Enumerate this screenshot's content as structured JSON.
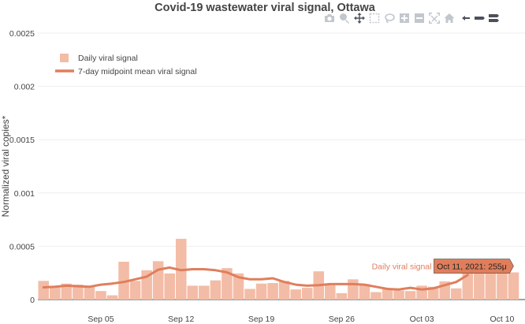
{
  "chart_data": {
    "type": "bar",
    "title": "Covid-19 wastewater viral signal, Ottawa",
    "ylabel": "Normalized viral copies*",
    "xlabel": "",
    "ylim": [
      0,
      0.0025
    ],
    "yticks": [
      0,
      0.0005,
      0.001,
      0.0015,
      0.002,
      0.0025
    ],
    "ytick_labels": [
      "0",
      "0.0005",
      "0.001",
      "0.0015",
      "0.002",
      "0.0025"
    ],
    "xrange": [
      "2021-08-31",
      "2021-10-12"
    ],
    "xticks": [
      "2021-09-05",
      "2021-09-12",
      "2021-09-19",
      "2021-09-26",
      "2021-10-03",
      "2021-10-10"
    ],
    "xtick_labels": [
      "Sep 05",
      "Sep 12",
      "Sep 19",
      "Sep 26",
      "Oct 03",
      "Oct 10"
    ],
    "grid": true,
    "legend_position": "top-left",
    "colors": {
      "bar": "#f3bca6",
      "line": "#e07e5c",
      "hover_box": "#e07e5c",
      "title": "#444444",
      "axis_text": "#444444",
      "grid": "#eeeeee"
    },
    "series": [
      {
        "name": "Daily viral signal",
        "kind": "bar",
        "x": [
          "2021-08-31",
          "2021-09-01",
          "2021-09-02",
          "2021-09-03",
          "2021-09-04",
          "2021-09-05",
          "2021-09-06",
          "2021-09-07",
          "2021-09-08",
          "2021-09-09",
          "2021-09-10",
          "2021-09-11",
          "2021-09-12",
          "2021-09-13",
          "2021-09-14",
          "2021-09-15",
          "2021-09-16",
          "2021-09-17",
          "2021-09-18",
          "2021-09-19",
          "2021-09-20",
          "2021-09-21",
          "2021-09-22",
          "2021-09-23",
          "2021-09-24",
          "2021-09-25",
          "2021-09-26",
          "2021-09-27",
          "2021-09-28",
          "2021-09-29",
          "2021-09-30",
          "2021-10-01",
          "2021-10-02",
          "2021-10-03",
          "2021-10-04",
          "2021-10-05",
          "2021-10-06",
          "2021-10-07",
          "2021-10-08",
          "2021-10-09",
          "2021-10-10",
          "2021-10-11"
        ],
        "values": [
          0.000175,
          0.000115,
          0.00015,
          0.00014,
          0.00012,
          8e-05,
          4e-05,
          0.000355,
          0.000175,
          0.000275,
          0.00036,
          0.000245,
          0.00057,
          0.00013,
          0.00013,
          0.00018,
          0.000295,
          0.000245,
          0.0001,
          0.00015,
          0.000155,
          0.000175,
          9.5e-05,
          0.00011,
          0.000265,
          0.000135,
          6e-05,
          0.00019,
          0.000145,
          7e-05,
          9.5e-05,
          8.5e-05,
          8e-05,
          0.00013,
          0.00012,
          0.00017,
          0.000105,
          0.000255,
          0.000255,
          0.000255,
          0.000255,
          0.000255
        ]
      },
      {
        "name": "7-day midpoint mean viral signal",
        "kind": "line",
        "x": [
          "2021-08-31",
          "2021-09-01",
          "2021-09-02",
          "2021-09-03",
          "2021-09-04",
          "2021-09-05",
          "2021-09-06",
          "2021-09-07",
          "2021-09-08",
          "2021-09-09",
          "2021-09-10",
          "2021-09-11",
          "2021-09-12",
          "2021-09-13",
          "2021-09-14",
          "2021-09-15",
          "2021-09-16",
          "2021-09-17",
          "2021-09-18",
          "2021-09-19",
          "2021-09-20",
          "2021-09-21",
          "2021-09-22",
          "2021-09-23",
          "2021-09-24",
          "2021-09-25",
          "2021-09-26",
          "2021-09-27",
          "2021-09-28",
          "2021-09-29",
          "2021-09-30",
          "2021-10-01",
          "2021-10-02",
          "2021-10-03",
          "2021-10-04",
          "2021-10-05",
          "2021-10-06",
          "2021-10-07"
        ],
        "values": [
          0.000115,
          0.00012,
          0.00013,
          0.000125,
          0.00012,
          0.00014,
          0.00015,
          0.000165,
          0.00019,
          0.000215,
          0.00028,
          0.0003,
          0.000275,
          0.000285,
          0.000285,
          0.000275,
          0.000255,
          0.00021,
          0.00019,
          0.00019,
          0.0002,
          0.000165,
          0.00014,
          0.00013,
          0.000135,
          0.000145,
          0.000145,
          0.000145,
          0.00014,
          0.00012,
          0.0001,
          9.5e-05,
          0.00011,
          9.5e-05,
          0.000105,
          0.000135,
          0.000165,
          0.00023
        ]
      }
    ],
    "hover": {
      "series_label": "Daily viral signal",
      "text": "Oct 11, 2021: 255μ",
      "x": "2021-10-11",
      "y": 0.000255
    }
  },
  "toolbar": {
    "buttons": [
      {
        "name": "camera-icon",
        "label": "Download plot as a png"
      },
      {
        "name": "zoom-icon",
        "label": "Zoom"
      },
      {
        "name": "pan-icon",
        "label": "Pan"
      },
      {
        "name": "box-select-icon",
        "label": "Box Select"
      },
      {
        "name": "lasso-select-icon",
        "label": "Lasso Select"
      },
      {
        "name": "zoom-in-icon",
        "label": "Zoom in"
      },
      {
        "name": "zoom-out-icon",
        "label": "Zoom out"
      },
      {
        "name": "autoscale-icon",
        "label": "Autoscale"
      },
      {
        "name": "home-icon",
        "label": "Reset axes"
      },
      {
        "name": "spike-lines-icon",
        "label": "Toggle Spike Lines"
      },
      {
        "name": "hover-closest-icon",
        "label": "Show closest data on hover"
      },
      {
        "name": "hover-compare-icon",
        "label": "Compare data on hover"
      }
    ]
  }
}
